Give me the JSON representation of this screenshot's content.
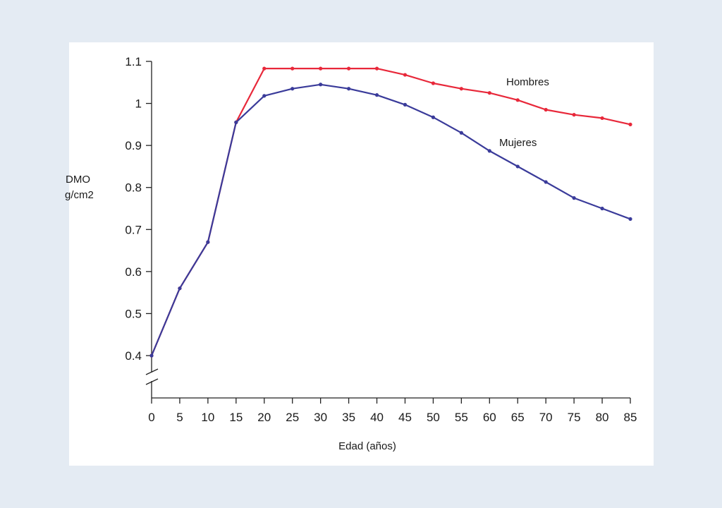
{
  "chart_data": {
    "type": "line",
    "title": "",
    "xlabel": "Edad (años)",
    "ylabel_lines": [
      "DMO",
      "g/cm2"
    ],
    "x": [
      0,
      5,
      10,
      15,
      20,
      25,
      30,
      35,
      40,
      45,
      50,
      55,
      60,
      65,
      70,
      75,
      80,
      85
    ],
    "x_ticks": [
      "0",
      "5",
      "10",
      "15",
      "20",
      "25",
      "30",
      "35",
      "40",
      "45",
      "50",
      "55",
      "60",
      "65",
      "70",
      "75",
      "80",
      "85"
    ],
    "y_ticks": [
      "0.4",
      "0.5",
      "0.6",
      "0.7",
      "0.8",
      "0.9",
      "1",
      "1.1"
    ],
    "y_tick_values": [
      0.4,
      0.5,
      0.6,
      0.7,
      0.8,
      0.9,
      1.0,
      1.1
    ],
    "ylim": [
      0.4,
      1.1
    ],
    "xlim": [
      0,
      85
    ],
    "axis_break": true,
    "grid": false,
    "series": [
      {
        "name": "Hombres",
        "color": "#e8283a",
        "values": [
          0.4,
          0.56,
          0.67,
          0.955,
          1.083,
          1.083,
          1.083,
          1.083,
          1.083,
          1.068,
          1.048,
          1.035,
          1.025,
          1.008,
          0.985,
          0.973,
          0.965,
          0.95
        ]
      },
      {
        "name": "Mujeres",
        "color": "#3a3b9a",
        "values": [
          0.4,
          0.56,
          0.67,
          0.955,
          1.018,
          1.035,
          1.045,
          1.035,
          1.02,
          0.997,
          0.967,
          0.93,
          0.887,
          0.85,
          0.813,
          0.775,
          0.75,
          0.725
        ]
      }
    ]
  }
}
